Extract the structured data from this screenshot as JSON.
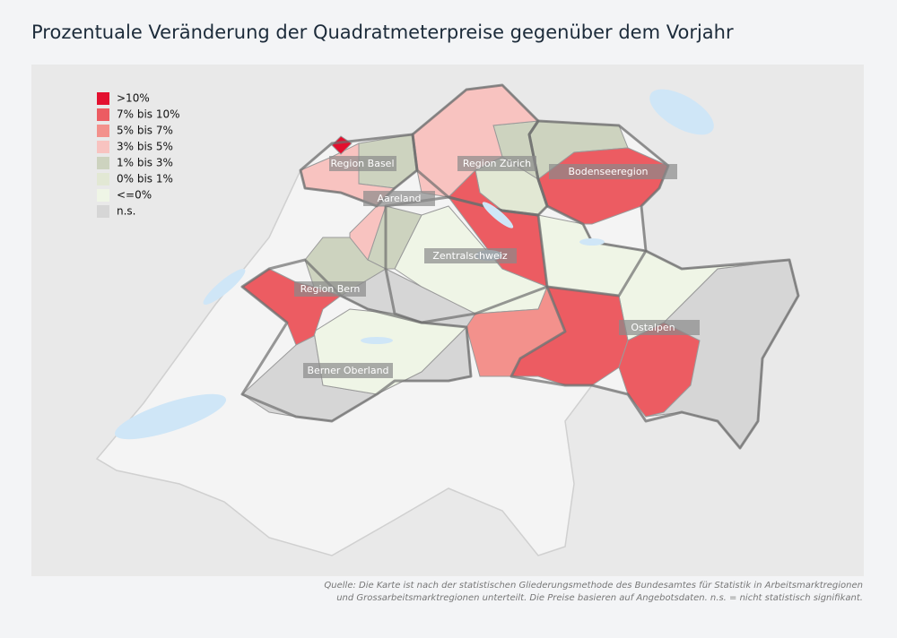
{
  "title": "Prozentuale Veränderung der Quadratmeterpreise gegenüber dem Vorjahr",
  "legend": [
    {
      "label": ">10%",
      "color": "#e3102f"
    },
    {
      "label": "7% bis 10%",
      "color": "#ec5c62"
    },
    {
      "label": "5% bis 7%",
      "color": "#f3918c"
    },
    {
      "label": "3% bis 5%",
      "color": "#f8c3c0"
    },
    {
      "label": "1% bis 3%",
      "color": "#cdd3bf"
    },
    {
      "label": "0% bis 1%",
      "color": "#e2e8d4"
    },
    {
      "label": "<=0%",
      "color": "#eff5e6"
    },
    {
      "label": "n.s.",
      "color": "#d6d6d6"
    }
  ],
  "regions": [
    "Region Basel",
    "Region Zürich",
    "Bodenseeregion",
    "Aareland",
    "Zentralschweiz",
    "Region Bern",
    "Berner Oberland",
    "Ostalpen"
  ],
  "source": [
    "Quelle: Die Karte ist nach der statistischen Gliederungsmethode des Bundesamtes für Statistik in Arbeitsmarktregionen",
    "und Grossarbeitsmarktregionen unterteilt. Die Preise basieren auf Angebotsdaten. n.s. = nicht statistisch signifikant."
  ]
}
